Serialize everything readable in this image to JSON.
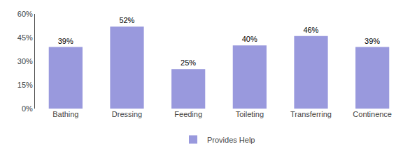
{
  "chart_data": {
    "type": "bar",
    "categories": [
      "Bathing",
      "Dressing",
      "Feeding",
      "Toileting",
      "Transferring",
      "Continence"
    ],
    "series": [
      {
        "name": "Provides Help",
        "color": "#9999dd",
        "values": [
          39,
          52,
          25,
          40,
          46,
          39
        ],
        "value_labels": [
          "39%",
          "52%",
          "25%",
          "40%",
          "46%",
          "39%"
        ]
      }
    ],
    "data_labels": true,
    "ylim": [
      0,
      60
    ],
    "yticks": [
      {
        "value": 0,
        "label": "0%"
      },
      {
        "value": 15,
        "label": "15%"
      },
      {
        "value": 30,
        "label": "30%"
      },
      {
        "value": 45,
        "label": "45%"
      },
      {
        "value": 60,
        "label": "60%"
      }
    ],
    "grid": false,
    "legend": "bottom"
  }
}
